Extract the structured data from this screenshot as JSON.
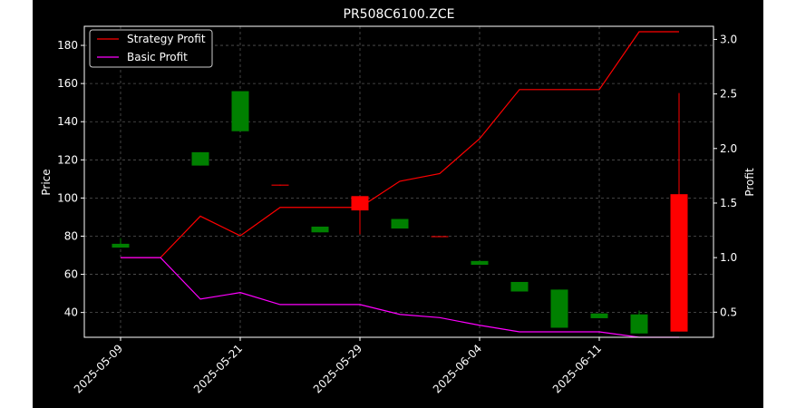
{
  "chart_data": {
    "type": "candlestick",
    "title": "PR508C6100.ZCE",
    "ylabel_left": "Price",
    "ylabel_right": "Profit",
    "xlabel": "",
    "ylim_left": [
      27,
      190
    ],
    "ylim_right": [
      0.27,
      3.12
    ],
    "left_ticks": [
      40,
      60,
      80,
      100,
      120,
      140,
      160,
      180
    ],
    "right_ticks": [
      0.5,
      1.0,
      1.5,
      2.0,
      2.5,
      3.0
    ],
    "right_tick_labels": [
      "0.5",
      "1.0",
      "1.5",
      "2.0",
      "2.5",
      "3.0"
    ],
    "x_tick_labels": [
      "2025-05-09",
      "2025-05-21",
      "2025-05-29",
      "2025-06-04",
      "2025-06-11"
    ],
    "x_tick_index": [
      0,
      3,
      6,
      9,
      12
    ],
    "grid": true,
    "legend_position": "top-left",
    "colors": {
      "up": "#008000",
      "down": "#ff0000",
      "strategy": "#ff0000",
      "basic": "#ff00ff",
      "background": "#000000",
      "foreground": "#ffffff",
      "grid": "#555555"
    },
    "candles": [
      {
        "index": 0,
        "open": 74,
        "close": 76,
        "high": 79,
        "low": 74
      },
      {
        "index": 2,
        "open": 117,
        "close": 124,
        "high": 124,
        "low": 117
      },
      {
        "index": 3,
        "open": 135,
        "close": 156,
        "high": 156,
        "low": 135
      },
      {
        "index": 4,
        "open": 107,
        "close": 106.5,
        "high": 107,
        "low": 106.5
      },
      {
        "index": 5,
        "open": 82,
        "close": 85,
        "high": 85,
        "low": 82
      },
      {
        "index": 6,
        "open": 101,
        "close": 93.5,
        "high": 101,
        "low": 81
      },
      {
        "index": 7,
        "open": 84,
        "close": 89,
        "high": 89,
        "low": 84
      },
      {
        "index": 8,
        "open": 80,
        "close": 79.5,
        "high": 80,
        "low": 79.5
      },
      {
        "index": 9,
        "open": 65,
        "close": 67,
        "high": 67,
        "low": 65
      },
      {
        "index": 10,
        "open": 51,
        "close": 56,
        "high": 56,
        "low": 51
      },
      {
        "index": 11,
        "open": 32,
        "close": 52,
        "high": 52,
        "low": 32
      },
      {
        "index": 12,
        "open": 37,
        "close": 39.5,
        "high": 39.5,
        "low": 37
      },
      {
        "index": 13,
        "open": 29,
        "close": 39,
        "high": 41,
        "low": 29
      },
      {
        "index": 14,
        "open": 102,
        "close": 30,
        "high": 155,
        "low": 30
      }
    ],
    "series": [
      {
        "name": "Strategy Profit",
        "color": "#ff0000",
        "values": [
          1.0,
          1.0,
          1.38,
          1.2,
          1.46,
          1.46,
          1.46,
          1.7,
          1.77,
          2.09,
          2.54,
          2.54,
          2.54,
          3.07,
          3.07
        ]
      },
      {
        "name": "Basic Profit",
        "color": "#ff00ff",
        "values": [
          1.0,
          1.0,
          0.62,
          0.68,
          0.57,
          0.57,
          0.57,
          0.48,
          0.45,
          0.38,
          0.32,
          0.32,
          0.32,
          0.27,
          0.27
        ]
      }
    ]
  }
}
